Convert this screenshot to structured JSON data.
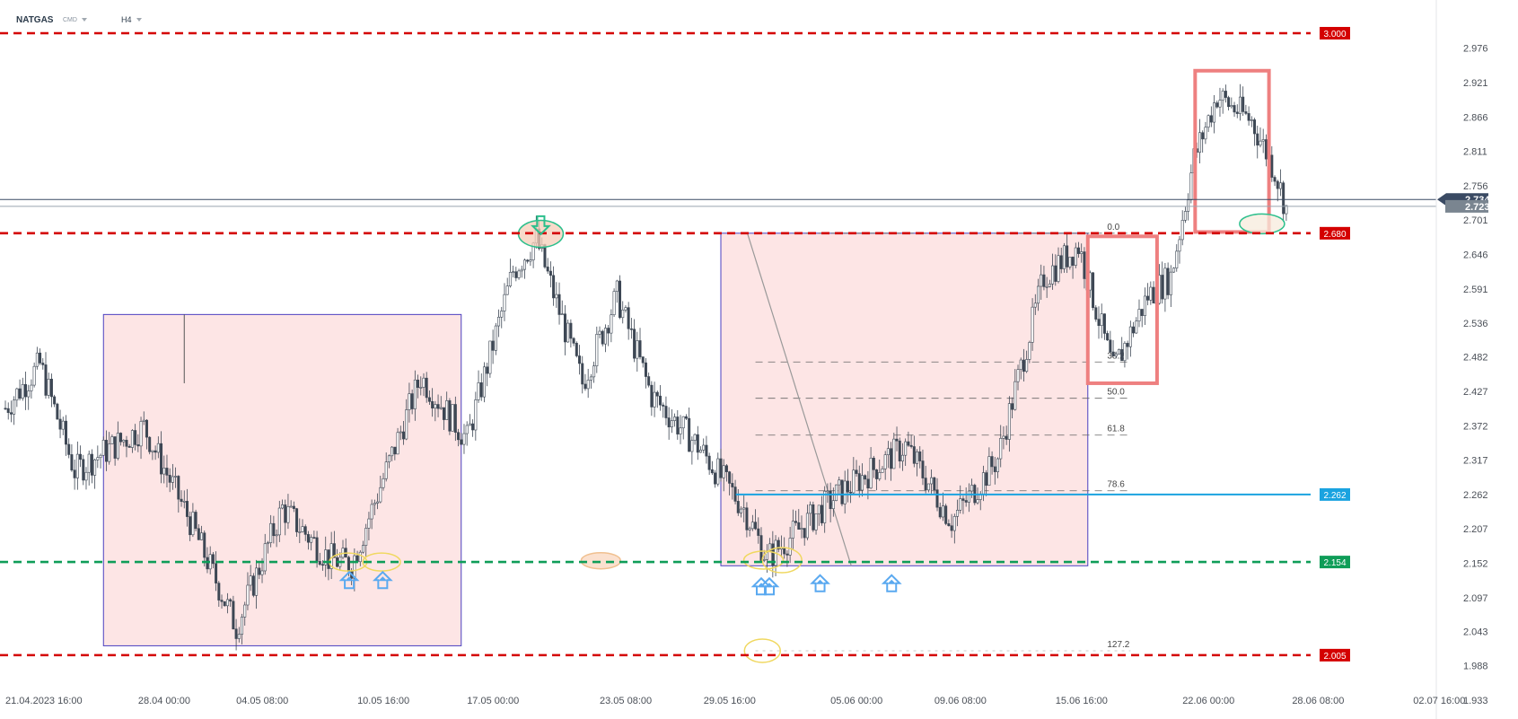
{
  "header": {
    "symbol": "NATGAS",
    "market": "CMD",
    "timeframe": "H4"
  },
  "colors": {
    "resistance": "#d40000",
    "support": "#0f9d58",
    "level_blue": "#1aa3e0",
    "zone_fill": "#fde5e5",
    "zone_border": "#4a3fc0",
    "highlight_box": "#ee8080",
    "bull_candle": "#ffffff",
    "bear_candle": "#3d4754",
    "arrow": "#5aa9f0"
  },
  "chart_data": {
    "type": "candlestick",
    "ylim": [
      1.933,
      3.0
    ],
    "price_ticks": [
      "2.976",
      "2.921",
      "2.866",
      "2.811",
      "2.756",
      "2.701",
      "2.646",
      "2.591",
      "2.536",
      "2.482",
      "2.427",
      "2.372",
      "2.317",
      "2.262",
      "2.207",
      "2.152",
      "2.097",
      "2.043",
      "1.988",
      "1.933"
    ],
    "time_ticks": [
      "21.04.2023  16:00",
      "28.04  00:00",
      "04.05  08:00",
      "10.05  16:00",
      "17.05  00:00",
      "23.05  08:00",
      "29.05  16:00",
      "05.06  00:00",
      "09.06  08:00",
      "15.06  16:00",
      "22.06  00:00",
      "28.06  08:00",
      "02.07  16:00"
    ],
    "horizontal_levels": [
      {
        "value": 3.0,
        "label": "3.000",
        "style": "dashed",
        "color": "#d40000"
      },
      {
        "value": 2.68,
        "label": "2.680",
        "style": "dashed",
        "color": "#d40000"
      },
      {
        "value": 2.262,
        "label": "2.262",
        "style": "solid",
        "color": "#1aa3e0"
      },
      {
        "value": 2.154,
        "label": "2.154",
        "style": "dashed",
        "color": "#0f9d58"
      },
      {
        "value": 2.005,
        "label": "2.005",
        "style": "dashed",
        "color": "#d40000"
      }
    ],
    "current_price": {
      "value": 2.723,
      "label": "2.723",
      "overlapped_value": 2.734,
      "overlapped_label": "2.734"
    },
    "fibonacci": {
      "levels": [
        {
          "label": "0.0",
          "value": 2.68
        },
        {
          "label": "38.2",
          "value": 2.474
        },
        {
          "label": "50.0",
          "value": 2.416
        },
        {
          "label": "61.8",
          "value": 2.357
        },
        {
          "label": "78.6",
          "value": 2.268
        },
        {
          "label": "127.2",
          "value": 2.012
        }
      ]
    },
    "candles_key_points": [
      {
        "t": 0,
        "close": 2.4
      },
      {
        "t": 3,
        "close": 2.47
      },
      {
        "t": 6,
        "close": 2.3
      },
      {
        "t": 12,
        "close": 2.37
      },
      {
        "t": 16,
        "close": 2.22
      },
      {
        "t": 20,
        "close": 2.05
      },
      {
        "t": 24,
        "close": 2.24
      },
      {
        "t": 28,
        "close": 2.16
      },
      {
        "t": 30,
        "close": 2.15
      },
      {
        "t": 36,
        "close": 2.45
      },
      {
        "t": 40,
        "close": 2.35
      },
      {
        "t": 44,
        "close": 2.62
      },
      {
        "t": 46,
        "close": 2.67
      },
      {
        "t": 50,
        "close": 2.44
      },
      {
        "t": 53,
        "close": 2.58
      },
      {
        "t": 56,
        "close": 2.42
      },
      {
        "t": 60,
        "close": 2.34
      },
      {
        "t": 64,
        "close": 2.24
      },
      {
        "t": 66,
        "close": 2.16
      },
      {
        "t": 72,
        "close": 2.26
      },
      {
        "t": 78,
        "close": 2.34
      },
      {
        "t": 82,
        "close": 2.22
      },
      {
        "t": 86,
        "close": 2.32
      },
      {
        "t": 90,
        "close": 2.61
      },
      {
        "t": 93,
        "close": 2.66
      },
      {
        "t": 96,
        "close": 2.46
      },
      {
        "t": 99,
        "close": 2.58
      },
      {
        "t": 101,
        "close": 2.61
      },
      {
        "t": 103,
        "close": 2.8
      },
      {
        "t": 105,
        "close": 2.9
      },
      {
        "t": 108,
        "close": 2.86
      },
      {
        "t": 110,
        "close": 2.78
      },
      {
        "t": 111,
        "close": 2.72
      }
    ]
  }
}
